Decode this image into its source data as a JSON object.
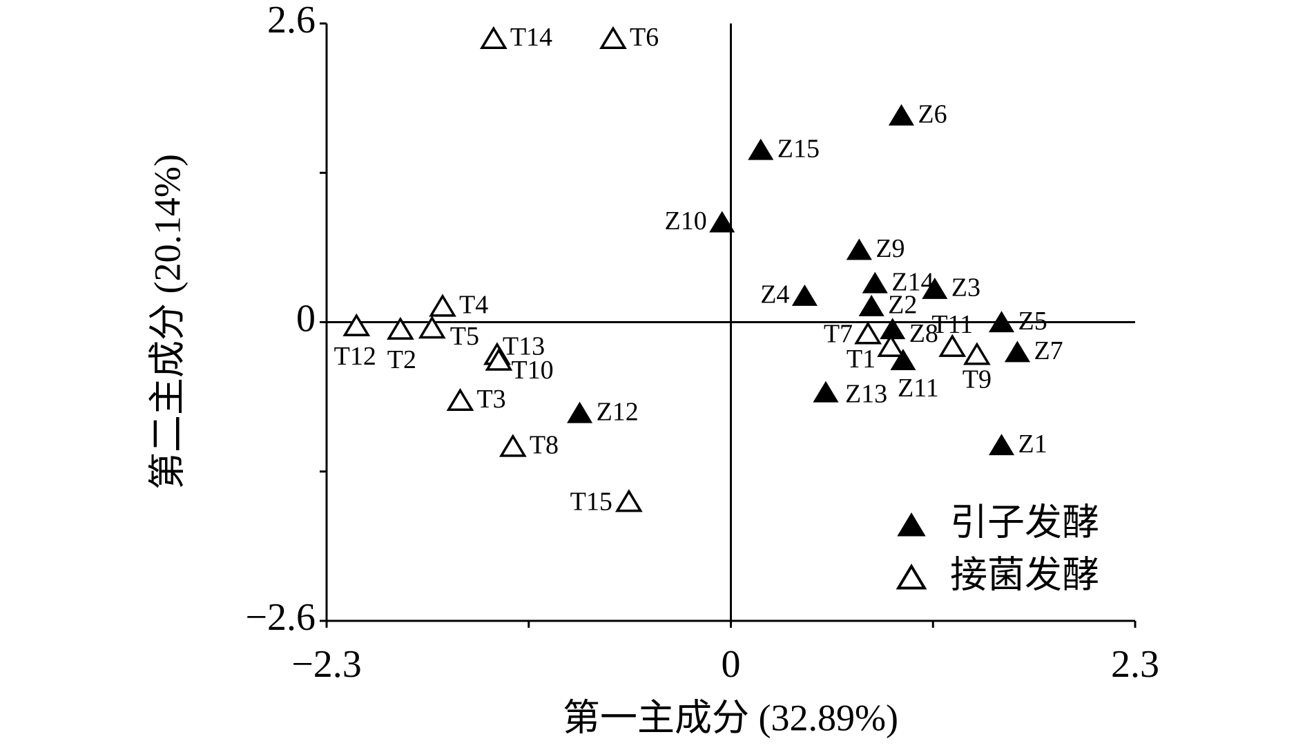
{
  "chart_data": {
    "type": "scatter",
    "x_label": "第一主成分 (32.89%)",
    "y_label": "第二主成分 (20.14%)",
    "xlim": [
      -2.3,
      2.3
    ],
    "ylim": [
      -2.6,
      2.6
    ],
    "xticks": [
      {
        "value": -2.3,
        "label": "−2.3"
      },
      0,
      2.3
    ],
    "yticks": [
      2.6,
      0,
      {
        "value": -2.6,
        "label": "−2.6"
      }
    ],
    "xminor_ticks": [
      -1.15,
      1.15
    ],
    "yminor_ticks": [
      -1.3,
      1.3
    ],
    "legend_position": "lower right",
    "series": [
      {
        "name": "引子发酵",
        "color": "#000000",
        "filled": true,
        "labels": [
          "Z6",
          "Z15",
          "Z10",
          "Z9",
          "Z14",
          "Z3",
          "Z4",
          "Z2",
          "Z8",
          "Z5",
          "Z7",
          "Z11",
          "Z13",
          "Z1",
          "Z12"
        ],
        "x": [
          0.97,
          0.17,
          -0.05,
          0.73,
          0.82,
          1.16,
          0.42,
          0.8,
          0.92,
          1.54,
          1.63,
          0.98,
          0.54,
          1.54,
          -0.86
        ],
        "values": [
          1.79,
          1.49,
          0.86,
          0.62,
          0.33,
          0.28,
          0.22,
          0.13,
          -0.07,
          -0.01,
          -0.27,
          -0.34,
          -0.62,
          -1.08,
          -0.8
        ]
      },
      {
        "name": "接菌发酵",
        "color": "#000000",
        "filled": false,
        "labels": [
          "T14",
          "T6",
          "T4",
          "T12",
          "T2",
          "T5",
          "T13",
          "T10",
          "T3",
          "T8",
          "T15",
          "T7",
          "T1",
          "T11",
          "T9"
        ],
        "x": [
          -1.35,
          -0.67,
          -1.64,
          -2.13,
          -1.88,
          -1.7,
          -1.33,
          -1.32,
          -1.54,
          -1.24,
          -0.58,
          0.78,
          0.91,
          1.26,
          1.4
        ],
        "values": [
          2.46,
          2.46,
          0.13,
          -0.04,
          -0.07,
          -0.06,
          -0.29,
          -0.34,
          -0.69,
          -1.09,
          -1.57,
          -0.11,
          -0.22,
          -0.22,
          -0.29
        ]
      }
    ]
  }
}
